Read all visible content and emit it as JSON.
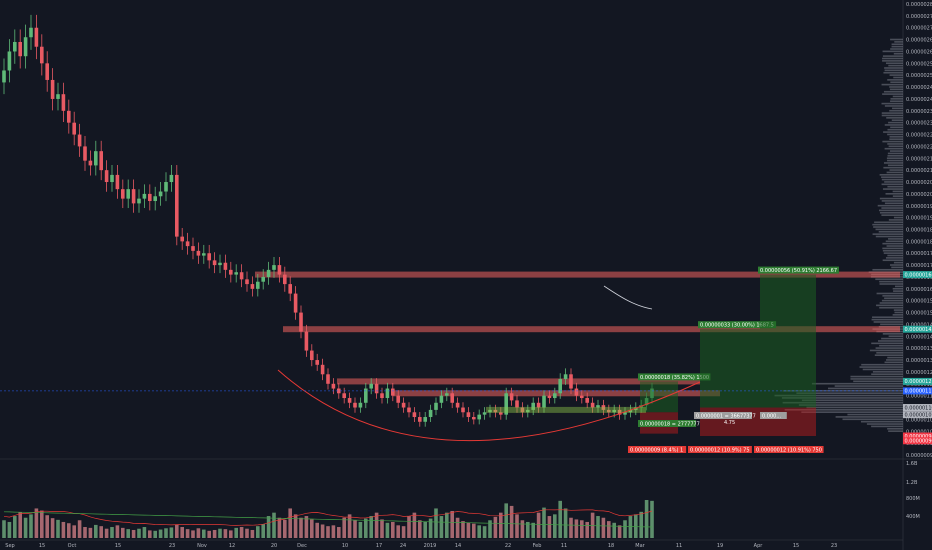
{
  "chart_data": {
    "type": "candlestick",
    "title": "",
    "price_axis": {
      "ticks": [
        "0.00000280",
        "0.00000275",
        "0.00000270",
        "0.00000265",
        "0.00000260",
        "0.00000255",
        "0.00000250",
        "0.00000245",
        "0.00000240",
        "0.00000235",
        "0.00000230",
        "0.00000225",
        "0.00000220",
        "0.00000215",
        "0.00000210",
        "0.00000205",
        "0.00000200",
        "0.00000195",
        "0.00000190",
        "0.00000185",
        "0.00000180",
        "0.00000175",
        "0.00000170",
        "0.00000165",
        "0.00000160",
        "0.00000155",
        "0.00000150",
        "0.00000145",
        "0.00000140",
        "0.00000135",
        "0.00000130",
        "0.00000125",
        "0.00000120",
        "0.00000115",
        "0.00000110",
        "0.00000105",
        "0.00000100",
        "0.00000095",
        "0.00000090"
      ],
      "ylim": [
        9e-07,
        2.8e-06
      ],
      "tags": [
        {
          "text": "0.00000166",
          "value": 1.66e-06,
          "color": "#26a69a"
        },
        {
          "text": "0.00000143",
          "value": 1.43e-06,
          "color": "#26a69a"
        },
        {
          "text": "0.00000121",
          "value": 1.21e-06,
          "color": "#26a69a"
        },
        {
          "text": "0.00000117",
          "value": 1.17e-06,
          "color": "#2962ff"
        },
        {
          "text": "0.00000110",
          "value": 1.1e-06,
          "color": "#b2b5be"
        },
        {
          "text": "0.00000107",
          "value": 1.07e-06,
          "color": "#b2b5be"
        },
        {
          "text": "0.00000098",
          "value": 9.8e-07,
          "color": "#f23645"
        },
        {
          "text": "0.00000096",
          "value": 9.6e-07,
          "color": "#f23645"
        }
      ]
    },
    "volume_axis": {
      "ticks": [
        "1.6B",
        "1.2B",
        "800M",
        "400M"
      ]
    },
    "x_axis": {
      "ticks": [
        "Sep",
        "15",
        "Oct",
        "15",
        "23",
        "Nov",
        "12",
        "20",
        "Dec",
        "10",
        "17",
        "24",
        "2019",
        "14",
        "22",
        "Feb",
        "11",
        "18",
        "Mar",
        "11",
        "19",
        "Apr",
        "15",
        "23"
      ]
    },
    "horizontal_zones": [
      {
        "price": 1.66e-06,
        "color": "#f0625f"
      },
      {
        "price": 1.43e-06,
        "color": "#f0625f"
      },
      {
        "price": 1.21e-06,
        "color": "#f0625f"
      },
      {
        "price": 1.16e-06,
        "color": "#f0625f"
      }
    ],
    "positions": [
      {
        "target_text": "0.00000018 (35.82%) 1500",
        "stop_text": "0.00000009 (8.4%) 1",
        "entry_text": "0.00000018 = 2777777"
      },
      {
        "target_text": "0.00000033 (30.00%) 1687.5",
        "stop_text": "0.00000012 (10.9%) 75",
        "entry_text": "0.0000001 = 36677377"
      },
      {
        "target_text": "0.00000056 (50.91%) 2166.67",
        "stop_text": "0.00000012 (10.91%) 750",
        "entry_text": "0.000..."
      }
    ],
    "entry_sub": "4.75",
    "closes": [
      2.52,
      2.6,
      2.64,
      2.58,
      2.66,
      2.7,
      2.62,
      2.55,
      2.48,
      2.4,
      2.42,
      2.35,
      2.3,
      2.25,
      2.2,
      2.14,
      2.12,
      2.18,
      2.1,
      2.05,
      2.08,
      2.02,
      1.98,
      2.02,
      1.96,
      1.98,
      2.0,
      1.97,
      1.99,
      2.01,
      2.05,
      2.08,
      1.82,
      1.8,
      1.78,
      1.76,
      1.74,
      1.75,
      1.72,
      1.7,
      1.71,
      1.68,
      1.66,
      1.67,
      1.64,
      1.62,
      1.6,
      1.63,
      1.65,
      1.68,
      1.7,
      1.66,
      1.62,
      1.58,
      1.5,
      1.42,
      1.34,
      1.3,
      1.28,
      1.24,
      1.2,
      1.18,
      1.16,
      1.14,
      1.12,
      1.1,
      1.12,
      1.18,
      1.2,
      1.16,
      1.14,
      1.18,
      1.15,
      1.12,
      1.1,
      1.08,
      1.06,
      1.04,
      1.06,
      1.09,
      1.12,
      1.15,
      1.16,
      1.12,
      1.1,
      1.08,
      1.06,
      1.05,
      1.07,
      1.08,
      1.09,
      1.08,
      1.07,
      1.16,
      1.13,
      1.1,
      1.08,
      1.09,
      1.12,
      1.1,
      1.15,
      1.14,
      1.16,
      1.22,
      1.24,
      1.18,
      1.15,
      1.14,
      1.12,
      1.1,
      1.11,
      1.09,
      1.08,
      1.09,
      1.07,
      1.08,
      1.09,
      1.1,
      1.11,
      1.14,
      1.18
    ],
    "volumes": [
      420,
      380,
      520,
      610,
      480,
      560,
      700,
      650,
      540,
      470,
      430,
      380,
      350,
      300,
      420,
      260,
      240,
      310,
      280,
      220,
      260,
      300,
      240,
      210,
      190,
      220,
      260,
      180,
      170,
      200,
      230,
      250,
      320,
      260,
      210,
      180,
      230,
      200,
      170,
      190,
      220,
      210,
      180,
      240,
      260,
      220,
      190,
      280,
      330,
      520,
      600,
      480,
      430,
      700,
      560,
      480,
      520,
      440,
      360,
      320,
      280,
      300,
      260,
      480,
      560,
      420,
      380,
      460,
      520,
      600,
      440,
      360,
      380,
      300,
      280,
      520,
      600,
      420,
      380,
      460,
      700,
      520,
      600,
      640,
      480,
      400,
      360,
      340,
      300,
      280,
      420,
      500,
      600,
      820,
      760,
      560,
      420,
      380,
      360,
      600,
      720,
      520,
      560,
      880,
      700,
      480,
      440,
      420,
      380,
      600,
      520,
      480,
      400,
      360,
      300,
      420,
      520,
      560,
      620,
      900,
      880
    ]
  }
}
